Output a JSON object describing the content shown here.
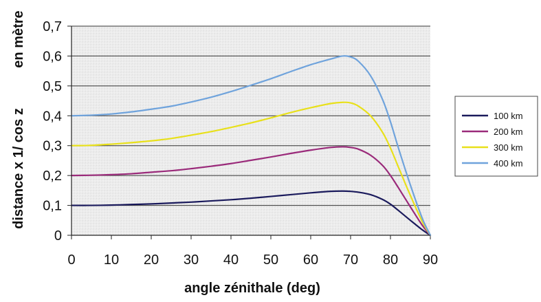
{
  "chart_data": {
    "type": "line",
    "xlabel": "angle zénithale  (deg)",
    "ylabel_left": "distance x 1/ cos z",
    "ylabel_right": "en mètre",
    "xlim": [
      0,
      90
    ],
    "ylim": [
      0,
      0.7
    ],
    "x_ticks": [
      "0",
      "10",
      "20",
      "30",
      "40",
      "50",
      "60",
      "70",
      "80",
      "90"
    ],
    "y_ticks": [
      "0",
      "0,1",
      "0,2",
      "0,3",
      "0,4",
      "0,5",
      "0,6",
      "0,7"
    ],
    "grid": "horizontal",
    "legend_position": "right",
    "x": [
      0,
      5,
      10,
      15,
      20,
      25,
      30,
      35,
      40,
      45,
      50,
      55,
      60,
      65,
      68,
      70,
      72,
      75,
      78,
      80,
      82,
      85,
      88,
      90
    ],
    "series": [
      {
        "name": "100 km",
        "color": "#1a1a5c",
        "values": [
          0.1,
          0.1,
          0.101,
          0.103,
          0.105,
          0.108,
          0.111,
          0.115,
          0.119,
          0.124,
          0.13,
          0.136,
          0.142,
          0.147,
          0.148,
          0.147,
          0.144,
          0.136,
          0.12,
          0.104,
          0.083,
          0.05,
          0.018,
          0.0
        ]
      },
      {
        "name": "200 km",
        "color": "#9a2a7a",
        "values": [
          0.2,
          0.201,
          0.203,
          0.206,
          0.211,
          0.216,
          0.223,
          0.231,
          0.24,
          0.251,
          0.262,
          0.274,
          0.285,
          0.294,
          0.296,
          0.294,
          0.288,
          0.268,
          0.234,
          0.2,
          0.159,
          0.095,
          0.033,
          0.0
        ]
      },
      {
        "name": "300 km",
        "color": "#e8e01a",
        "values": [
          0.3,
          0.301,
          0.305,
          0.31,
          0.316,
          0.324,
          0.335,
          0.347,
          0.361,
          0.376,
          0.393,
          0.411,
          0.427,
          0.441,
          0.445,
          0.443,
          0.432,
          0.4,
          0.345,
          0.292,
          0.228,
          0.133,
          0.045,
          0.0
        ]
      },
      {
        "name": "400 km",
        "color": "#6fa3dc",
        "values": [
          0.4,
          0.402,
          0.406,
          0.413,
          0.422,
          0.432,
          0.446,
          0.462,
          0.481,
          0.502,
          0.524,
          0.548,
          0.571,
          0.59,
          0.6,
          0.597,
          0.582,
          0.534,
          0.455,
          0.38,
          0.292,
          0.168,
          0.056,
          0.0
        ]
      }
    ]
  }
}
